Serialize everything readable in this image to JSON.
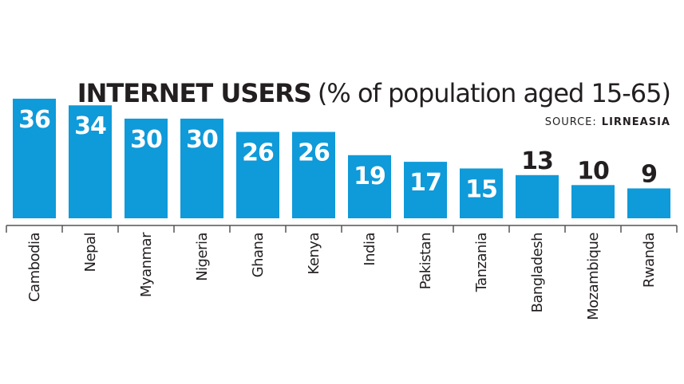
{
  "chart_data": {
    "type": "bar",
    "title": "INTERNET USERS",
    "subtitle": "(% of population aged 15-65)",
    "source_label": "SOURCE:",
    "source": "LIRNEASIA",
    "categories": [
      "Cambodia",
      "Nepal",
      "Myanmar",
      "Nigeria",
      "Ghana",
      "Kenya",
      "India",
      "Pakistan",
      "Tanzania",
      "Bangladesh",
      "Mozambique",
      "Rwanda"
    ],
    "values": [
      36,
      34,
      30,
      30,
      26,
      26,
      19,
      17,
      15,
      13,
      10,
      9
    ],
    "color": "#0f9ad9"
  }
}
